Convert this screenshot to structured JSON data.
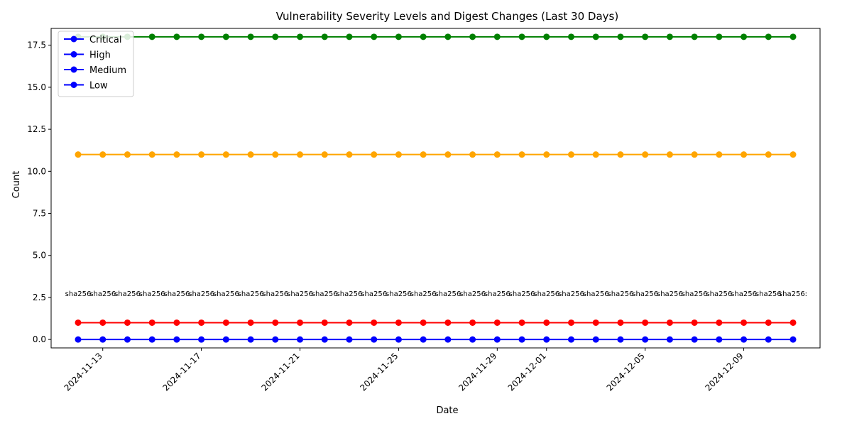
{
  "chart_data": {
    "type": "line",
    "title": "Vulnerability Severity Levels and Digest Changes (Last 30 Days)",
    "xlabel": "Date",
    "ylabel": "Count",
    "ylim": [
      -0.5,
      18.5
    ],
    "yticks": [
      "0.0",
      "2.5",
      "5.0",
      "7.5",
      "10.0",
      "12.5",
      "15.0",
      "17.5"
    ],
    "xtick_labels": [
      "2024-11-13",
      "2024-11-17",
      "2024-11-21",
      "2024-11-25",
      "2024-11-29",
      "2024-12-01",
      "2024-12-05",
      "2024-12-09"
    ],
    "dates": [
      "2024-11-12",
      "2024-11-13",
      "2024-11-14",
      "2024-11-15",
      "2024-11-16",
      "2024-11-17",
      "2024-11-18",
      "2024-11-19",
      "2024-11-20",
      "2024-11-21",
      "2024-11-22",
      "2024-11-23",
      "2024-11-24",
      "2024-11-25",
      "2024-11-26",
      "2024-11-27",
      "2024-11-28",
      "2024-11-29",
      "2024-11-30",
      "2024-12-01",
      "2024-12-02",
      "2024-12-03",
      "2024-12-04",
      "2024-12-05",
      "2024-12-06",
      "2024-12-07",
      "2024-12-08",
      "2024-12-09",
      "2024-12-10",
      "2024-12-11"
    ],
    "series": [
      {
        "name": "Critical",
        "color": "#ff0000",
        "value": 1
      },
      {
        "name": "High",
        "color": "#ffa500",
        "value": 11
      },
      {
        "name": "Medium",
        "color": "#008000",
        "value": 18
      },
      {
        "name": "Low",
        "color": "#0000ff",
        "value": 0
      }
    ],
    "legend_color": "#0000ff",
    "legend_position": "top-left",
    "digest_label": "sha256",
    "digest_label_last": "sha256:",
    "digest_y": 2.5,
    "grid": false
  }
}
